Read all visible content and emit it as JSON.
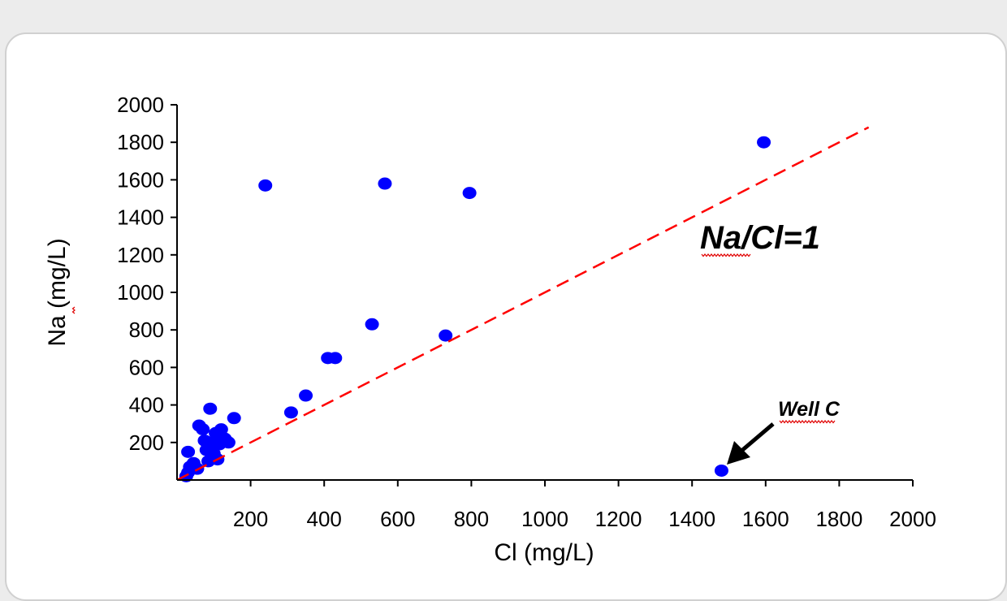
{
  "chart_data": {
    "type": "scatter",
    "xlabel": "Cl (mg/L)",
    "ylabel": "Na (mg/L)",
    "xlim": [
      0,
      2000
    ],
    "ylim": [
      0,
      2000
    ],
    "x_ticks": [
      200,
      400,
      600,
      800,
      1000,
      1200,
      1400,
      1600,
      1800,
      2000
    ],
    "y_ticks": [
      200,
      400,
      600,
      800,
      1000,
      1200,
      1400,
      1600,
      1800,
      2000
    ],
    "grid": false,
    "series": [
      {
        "color": "#0000ff",
        "points": [
          [
            25,
            20
          ],
          [
            30,
            40
          ],
          [
            35,
            70
          ],
          [
            45,
            90
          ],
          [
            55,
            60
          ],
          [
            30,
            150
          ],
          [
            60,
            290
          ],
          [
            70,
            270
          ],
          [
            75,
            210
          ],
          [
            80,
            160
          ],
          [
            85,
            100
          ],
          [
            90,
            380
          ],
          [
            95,
            200
          ],
          [
            100,
            140
          ],
          [
            105,
            250
          ],
          [
            110,
            110
          ],
          [
            115,
            190
          ],
          [
            120,
            270
          ],
          [
            130,
            220
          ],
          [
            140,
            200
          ],
          [
            155,
            330
          ],
          [
            240,
            1570
          ],
          [
            310,
            360
          ],
          [
            350,
            450
          ],
          [
            410,
            650
          ],
          [
            430,
            650
          ],
          [
            530,
            830
          ],
          [
            565,
            1580
          ],
          [
            730,
            770
          ],
          [
            795,
            1530
          ],
          [
            1480,
            50
          ],
          [
            1595,
            1800
          ]
        ]
      }
    ],
    "reference_line": {
      "color": "#ff0000",
      "points": [
        [
          0,
          0
        ],
        [
          1880,
          1880
        ]
      ]
    },
    "annotations": [
      {
        "text": "Na/Cl=1"
      },
      {
        "text": "Well C"
      }
    ]
  }
}
